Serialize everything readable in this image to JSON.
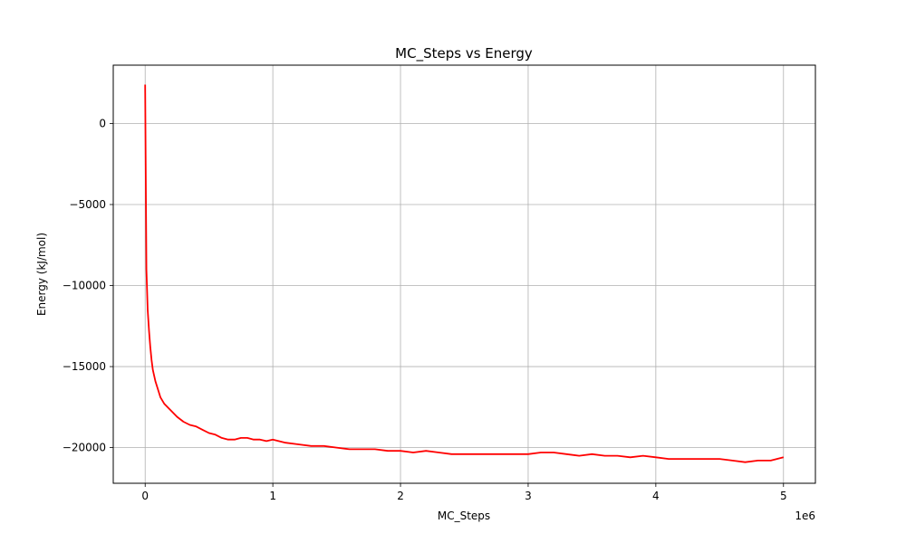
{
  "chart_data": {
    "type": "line",
    "title": "MC_Steps vs Energy",
    "xlabel": "MC_Steps",
    "ylabel": "Energy (kJ/mol)",
    "x_offset_label": "1e6",
    "xlim": [
      -250000,
      5250000
    ],
    "ylim": [
      -22200,
      3600
    ],
    "x_ticks": [
      0,
      1000000,
      2000000,
      3000000,
      4000000,
      5000000
    ],
    "x_tick_labels": [
      "0",
      "1",
      "2",
      "3",
      "4",
      "5"
    ],
    "y_ticks": [
      0,
      -5000,
      -10000,
      -15000,
      -20000
    ],
    "y_tick_labels": [
      "0",
      "−5000",
      "−10000",
      "−15000",
      "−20000"
    ],
    "grid": true,
    "line_color": "#ff0000",
    "series": [
      {
        "x": [
          0,
          10000,
          20000,
          30000,
          40000,
          50000,
          60000,
          80000,
          100000,
          120000,
          150000,
          200000,
          250000,
          300000,
          350000,
          400000,
          450000,
          500000,
          550000,
          600000,
          650000,
          700000,
          750000,
          800000,
          850000,
          900000,
          950000,
          1000000,
          1100000,
          1200000,
          1300000,
          1400000,
          1500000,
          1600000,
          1700000,
          1800000,
          1900000,
          2000000,
          2100000,
          2200000,
          2300000,
          2400000,
          2500000,
          2600000,
          2700000,
          2800000,
          2900000,
          3000000,
          3100000,
          3200000,
          3300000,
          3400000,
          3500000,
          3600000,
          3700000,
          3800000,
          3900000,
          4000000,
          4100000,
          4200000,
          4300000,
          4400000,
          4500000,
          4600000,
          4700000,
          4800000,
          4900000,
          5000000
        ],
        "y": [
          2400,
          -9000,
          -11500,
          -12800,
          -13800,
          -14600,
          -15200,
          -15900,
          -16400,
          -16900,
          -17300,
          -17700,
          -18100,
          -18400,
          -18600,
          -18700,
          -18900,
          -19100,
          -19200,
          -19400,
          -19500,
          -19500,
          -19400,
          -19400,
          -19500,
          -19500,
          -19600,
          -19500,
          -19700,
          -19800,
          -19900,
          -19900,
          -20000,
          -20100,
          -20100,
          -20100,
          -20200,
          -20200,
          -20300,
          -20200,
          -20300,
          -20400,
          -20400,
          -20400,
          -20400,
          -20400,
          -20400,
          -20400,
          -20300,
          -20300,
          -20400,
          -20500,
          -20400,
          -20500,
          -20500,
          -20600,
          -20500,
          -20600,
          -20700,
          -20700,
          -20700,
          -20700,
          -20700,
          -20800,
          -20900,
          -20800,
          -20800,
          -20600
        ]
      }
    ]
  }
}
